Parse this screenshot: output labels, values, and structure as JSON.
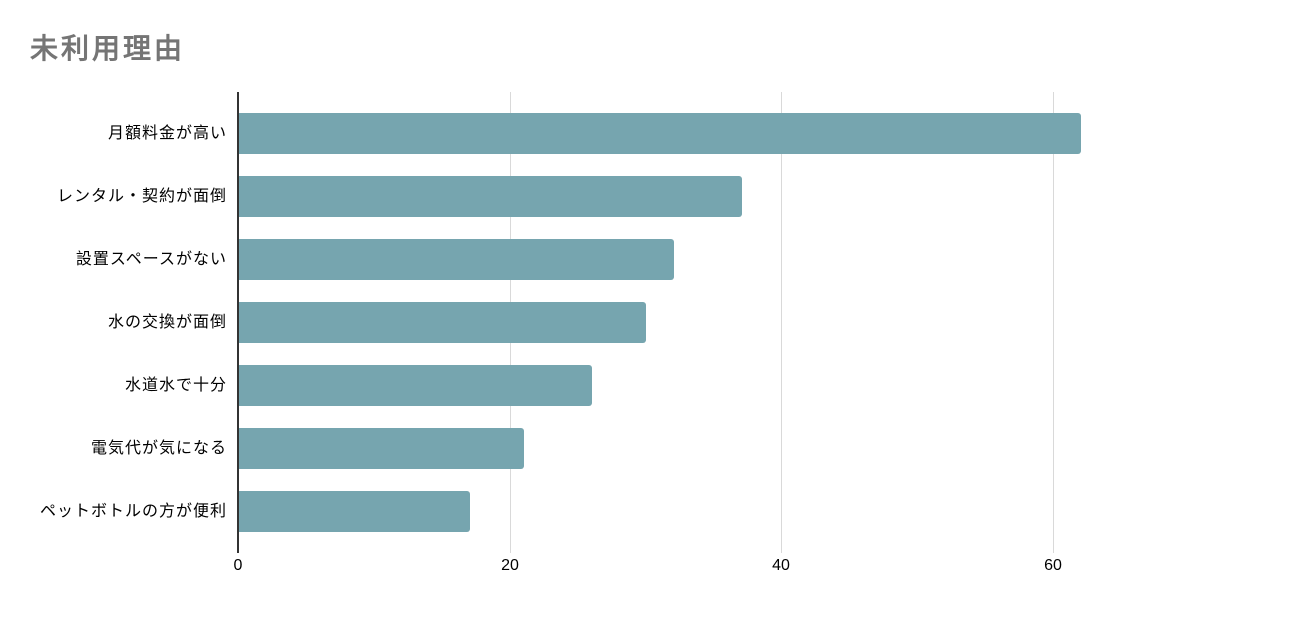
{
  "chart_data": {
    "type": "bar",
    "orientation": "horizontal",
    "title": "未利用理由",
    "categories": [
      "月額料金が高い",
      "レンタル・契約が面倒",
      "設置スペースがない",
      "水の交換が面倒",
      "水道水で十分",
      "電気代が気になる",
      "ペットボトルの方が便利"
    ],
    "values": [
      62,
      37,
      32,
      30,
      26,
      21,
      17
    ],
    "x_ticks": [
      "0",
      "20",
      "40",
      "60"
    ],
    "x_tick_values": [
      0,
      20,
      40,
      60
    ],
    "xlim": [
      0,
      66
    ],
    "xlabel": "",
    "ylabel": "",
    "grid": "vertical",
    "legend": "none",
    "colors": {
      "bar": "#76A5AF",
      "title": "#757575",
      "gridline": "#D9D9D9",
      "axis_line": "#333333",
      "tick_label": "#000000",
      "category_label": "#000000",
      "background": "#FFFFFF"
    }
  }
}
